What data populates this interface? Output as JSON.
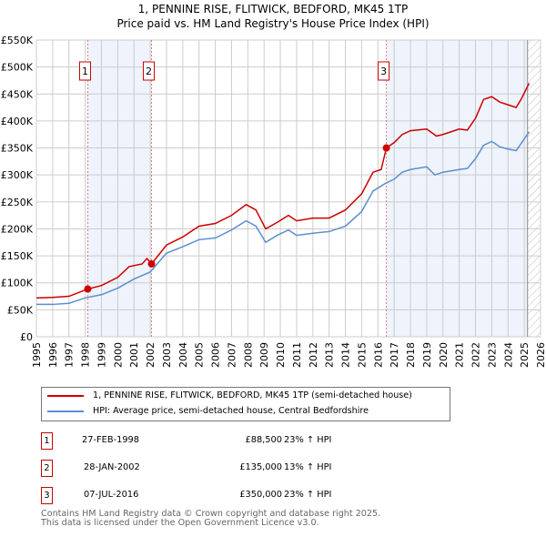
{
  "chart_data": {
    "type": "line",
    "title": "1, PENNINE RISE, FLITWICK, BEDFORD, MK45 1TP",
    "subtitle": "Price paid vs. HM Land Registry's House Price Index (HPI)",
    "xlim": [
      1995,
      2026
    ],
    "ylim": [
      0,
      550000
    ],
    "x_ticks": [
      "1995",
      "1996",
      "1997",
      "1998",
      "1999",
      "2000",
      "2001",
      "2002",
      "2003",
      "2004",
      "2005",
      "2006",
      "2007",
      "2008",
      "2009",
      "2010",
      "2011",
      "2012",
      "2013",
      "2014",
      "2015",
      "2016",
      "2017",
      "2018",
      "2019",
      "2020",
      "2021",
      "2022",
      "2023",
      "2024",
      "2025",
      "2026"
    ],
    "y_ticks": [
      {
        "v": 0,
        "l": "£0"
      },
      {
        "v": 50000,
        "l": "£50K"
      },
      {
        "v": 100000,
        "l": "£100K"
      },
      {
        "v": 150000,
        "l": "£150K"
      },
      {
        "v": 200000,
        "l": "£200K"
      },
      {
        "v": 250000,
        "l": "£250K"
      },
      {
        "v": 300000,
        "l": "£300K"
      },
      {
        "v": 350000,
        "l": "£350K"
      },
      {
        "v": 400000,
        "l": "£400K"
      },
      {
        "v": 450000,
        "l": "£450K"
      },
      {
        "v": 500000,
        "l": "£500K"
      },
      {
        "v": 550000,
        "l": "£550K"
      }
    ],
    "grid": true,
    "series": [
      {
        "name": "1, PENNINE RISE, FLITWICK, BEDFORD, MK45 1TP (semi-detached house)",
        "color": "#cc0000",
        "points": [
          [
            1995,
            72000
          ],
          [
            1996,
            73000
          ],
          [
            1997,
            75000
          ],
          [
            1998.16,
            88500
          ],
          [
            1999,
            95000
          ],
          [
            2000,
            110000
          ],
          [
            2000.7,
            130000
          ],
          [
            2001.5,
            135000
          ],
          [
            2001.8,
            145000
          ],
          [
            2002.08,
            135000
          ],
          [
            2003,
            170000
          ],
          [
            2004,
            185000
          ],
          [
            2005,
            205000
          ],
          [
            2006,
            210000
          ],
          [
            2007,
            225000
          ],
          [
            2007.9,
            245000
          ],
          [
            2008.5,
            235000
          ],
          [
            2009.1,
            200000
          ],
          [
            2009.8,
            212000
          ],
          [
            2010.5,
            225000
          ],
          [
            2011,
            215000
          ],
          [
            2012,
            220000
          ],
          [
            2013,
            220000
          ],
          [
            2014,
            235000
          ],
          [
            2015,
            265000
          ],
          [
            2015.7,
            305000
          ],
          [
            2016.2,
            310000
          ],
          [
            2016.52,
            350000
          ],
          [
            2017,
            360000
          ],
          [
            2017.5,
            375000
          ],
          [
            2018,
            382000
          ],
          [
            2019,
            385000
          ],
          [
            2019.6,
            372000
          ],
          [
            2020,
            375000
          ],
          [
            2021,
            385000
          ],
          [
            2021.5,
            383000
          ],
          [
            2022,
            405000
          ],
          [
            2022.5,
            440000
          ],
          [
            2023,
            445000
          ],
          [
            2023.5,
            435000
          ],
          [
            2024,
            430000
          ],
          [
            2024.5,
            425000
          ],
          [
            2024.8,
            440000
          ],
          [
            2025.3,
            470000
          ]
        ]
      },
      {
        "name": "HPI: Average price, semi-detached house, Central Bedfordshire",
        "color": "#5b8fd0",
        "points": [
          [
            1995,
            60000
          ],
          [
            1996,
            60000
          ],
          [
            1997,
            62000
          ],
          [
            1998,
            72000
          ],
          [
            1999,
            78000
          ],
          [
            2000,
            90000
          ],
          [
            2001,
            107000
          ],
          [
            2002,
            120000
          ],
          [
            2003,
            155000
          ],
          [
            2004,
            167000
          ],
          [
            2005,
            180000
          ],
          [
            2006,
            183000
          ],
          [
            2007,
            198000
          ],
          [
            2007.9,
            215000
          ],
          [
            2008.5,
            205000
          ],
          [
            2009.1,
            175000
          ],
          [
            2009.8,
            188000
          ],
          [
            2010.5,
            198000
          ],
          [
            2011,
            188000
          ],
          [
            2012,
            192000
          ],
          [
            2013,
            195000
          ],
          [
            2014,
            205000
          ],
          [
            2015,
            232000
          ],
          [
            2015.7,
            270000
          ],
          [
            2016.5,
            285000
          ],
          [
            2017,
            292000
          ],
          [
            2017.5,
            305000
          ],
          [
            2018,
            310000
          ],
          [
            2019,
            315000
          ],
          [
            2019.5,
            300000
          ],
          [
            2020,
            305000
          ],
          [
            2021,
            310000
          ],
          [
            2021.5,
            312000
          ],
          [
            2022,
            330000
          ],
          [
            2022.5,
            355000
          ],
          [
            2023,
            362000
          ],
          [
            2023.5,
            352000
          ],
          [
            2024,
            348000
          ],
          [
            2024.5,
            345000
          ],
          [
            2024.8,
            358000
          ],
          [
            2025.3,
            380000
          ]
        ]
      }
    ],
    "shaded_ranges": [
      [
        1998.16,
        2002.08
      ],
      [
        2016.52,
        2025.2
      ]
    ],
    "forecast_from": 2025.2,
    "transactions": [
      {
        "label": "1",
        "x": 1998.16,
        "price": 88500,
        "date": "27-FEB-1998",
        "price_text": "£88,500",
        "hpi": "23% ↑ HPI"
      },
      {
        "label": "2",
        "x": 2002.08,
        "price": 135000,
        "date": "28-JAN-2002",
        "price_text": "£135,000",
        "hpi": "13% ↑ HPI"
      },
      {
        "label": "3",
        "x": 2016.52,
        "price": 350000,
        "date": "07-JUL-2016",
        "price_text": "£350,000",
        "hpi": "23% ↑ HPI"
      }
    ]
  },
  "footer": [
    "Contains HM Land Registry data © Crown copyright and database right 2025.",
    "This data is licensed under the Open Government Licence v3.0."
  ]
}
